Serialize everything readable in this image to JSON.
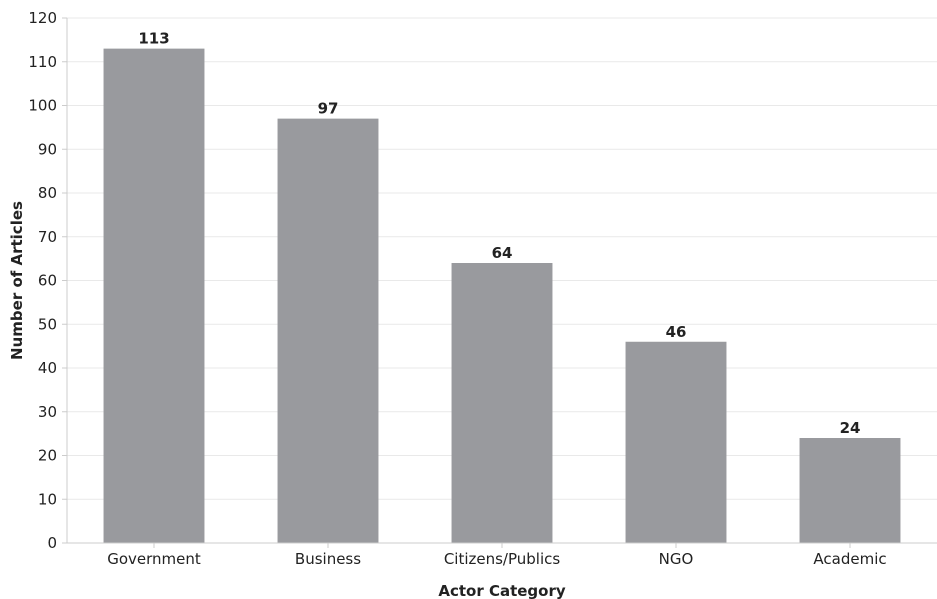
{
  "chart_data": {
    "type": "bar",
    "categories": [
      "Government",
      "Business",
      "Citizens/Publics",
      "NGO",
      "Academic"
    ],
    "values": [
      113,
      97,
      64,
      46,
      24
    ],
    "title": "",
    "xlabel": "Actor Category",
    "ylabel": "Number of Articles",
    "ylim": [
      0,
      120
    ],
    "yticks": [
      0,
      10,
      20,
      30,
      40,
      50,
      60,
      70,
      80,
      90,
      100,
      110,
      120
    ],
    "grid": true,
    "show_value_labels": true,
    "colors": {
      "bar": "#999a9e",
      "grid": "#e9e9e9",
      "axis": "#cccccc",
      "text": "#222222"
    }
  }
}
